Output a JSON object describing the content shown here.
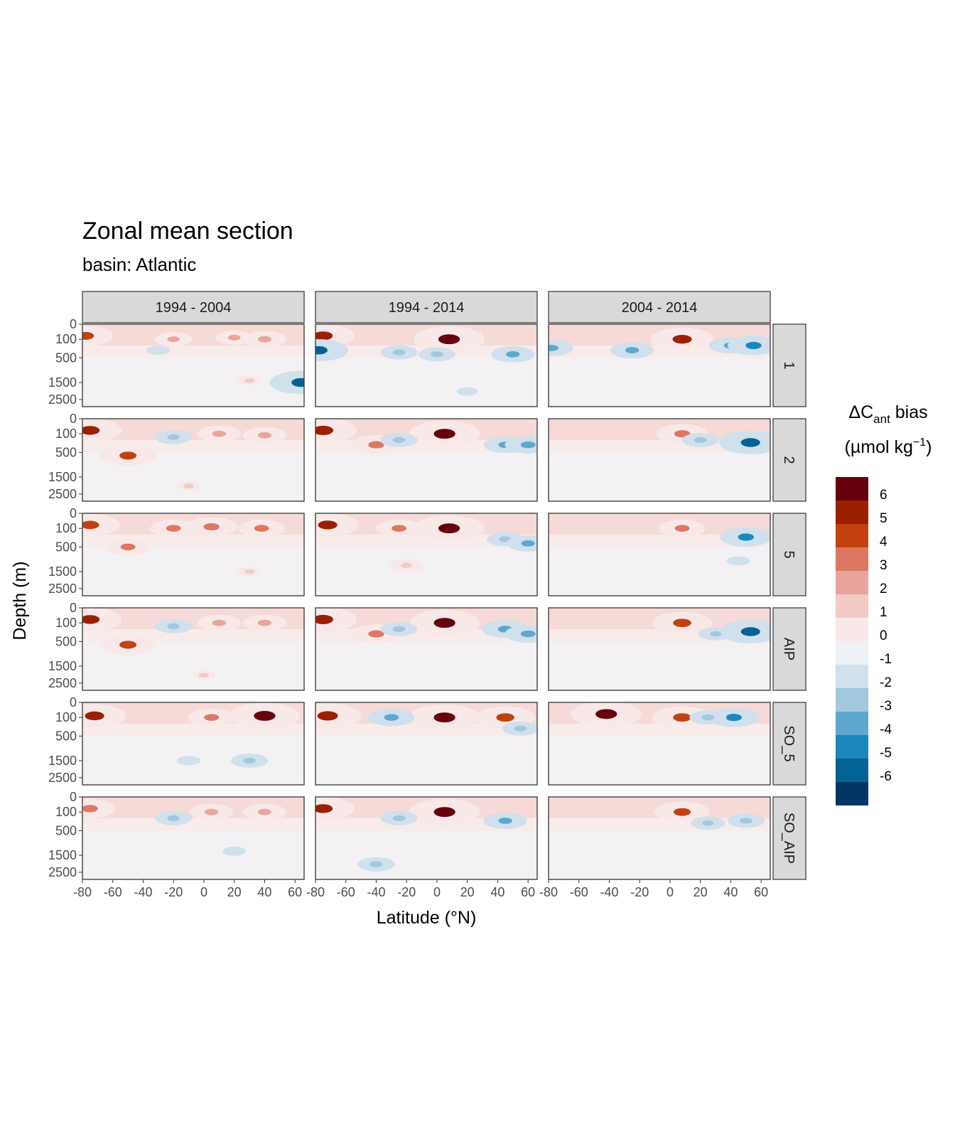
{
  "title": "Zonal mean section",
  "subtitle": "basin: Atlantic",
  "chart_data": {
    "type": "heatmap",
    "subtype": "filled-contour facet grid",
    "xlabel": "Latitude (°N)",
    "ylabel": "Depth (m)",
    "x_ticks": [
      "-80",
      "-60",
      "-40",
      "-20",
      "0",
      "20",
      "40",
      "60"
    ],
    "x_range": [
      -80,
      66
    ],
    "y_ticks": [
      "0",
      "100",
      "500",
      "1500",
      "2500"
    ],
    "y_reversed": true,
    "y_scale": "sqrt",
    "columns": [
      "1994 - 2004",
      "1994 - 2014",
      "2004 - 2014"
    ],
    "rows": [
      "1",
      "2",
      "5",
      "AIP",
      "SO_5",
      "SO_AIP"
    ],
    "legend": {
      "title_main": "ΔC",
      "title_sub": "ant",
      "title_tail": " bias",
      "unit_main": "(µmol kg",
      "unit_sup": "−1",
      "unit_tail": ")",
      "placement": "right",
      "labels": [
        "6",
        "5",
        "4",
        "3",
        "2",
        "1",
        "0",
        "-1",
        "-2",
        "-3",
        "-4",
        "-5",
        "-6"
      ],
      "colors": [
        "#67000D",
        "#9B2000",
        "#C3410F",
        "#DE7862",
        "#E9A59B",
        "#F2CAC6",
        "#F8E9E8",
        "#EEF2F6",
        "#D0E0EC",
        "#A1C8DF",
        "#5EA8D0",
        "#1A88BE",
        "#046294",
        "#033664"
      ]
    },
    "panels": [
      {
        "col": 0,
        "row": 0,
        "features": [
          {
            "lat": -78,
            "depth": 60,
            "value": 4.5
          },
          {
            "lat": -20,
            "depth": 100,
            "value": 2.5
          },
          {
            "lat": 20,
            "depth": 80,
            "value": 2.5
          },
          {
            "lat": 40,
            "depth": 100,
            "value": 3
          },
          {
            "lat": -30,
            "depth": 300,
            "value": -1.5
          },
          {
            "lat": 30,
            "depth": 1400,
            "value": 1.5
          },
          {
            "lat": 64,
            "depth": 1500,
            "value": -5.5
          }
        ]
      },
      {
        "col": 1,
        "row": 0,
        "features": [
          {
            "lat": -75,
            "depth": 60,
            "value": 5.5
          },
          {
            "lat": 8,
            "depth": 100,
            "value": 6.5
          },
          {
            "lat": -25,
            "depth": 350,
            "value": -2.5
          },
          {
            "lat": 0,
            "depth": 400,
            "value": -2.5
          },
          {
            "lat": 50,
            "depth": 400,
            "value": -3
          },
          {
            "lat": -78,
            "depth": 300,
            "value": -5
          },
          {
            "lat": 20,
            "depth": 2000,
            "value": -1
          }
        ]
      },
      {
        "col": 2,
        "row": 0,
        "features": [
          {
            "lat": -25,
            "depth": 300,
            "value": -3
          },
          {
            "lat": 8,
            "depth": 100,
            "value": 5.5
          },
          {
            "lat": 40,
            "depth": 200,
            "value": -3
          },
          {
            "lat": 55,
            "depth": 200,
            "value": -4
          },
          {
            "lat": -78,
            "depth": 250,
            "value": -3
          }
        ]
      },
      {
        "col": 0,
        "row": 1,
        "features": [
          {
            "lat": -75,
            "depth": 60,
            "value": 5.5
          },
          {
            "lat": -50,
            "depth": 600,
            "value": 4.5
          },
          {
            "lat": -20,
            "depth": 150,
            "value": -2.5
          },
          {
            "lat": 10,
            "depth": 100,
            "value": 3
          },
          {
            "lat": 40,
            "depth": 120,
            "value": 3
          },
          {
            "lat": -10,
            "depth": 2000,
            "value": 1.5
          }
        ]
      },
      {
        "col": 1,
        "row": 1,
        "features": [
          {
            "lat": -75,
            "depth": 60,
            "value": 6
          },
          {
            "lat": -40,
            "depth": 300,
            "value": 4
          },
          {
            "lat": 5,
            "depth": 100,
            "value": 6.5
          },
          {
            "lat": -25,
            "depth": 200,
            "value": -2.5
          },
          {
            "lat": 45,
            "depth": 300,
            "value": -3
          },
          {
            "lat": 60,
            "depth": 300,
            "value": -3.5
          }
        ]
      },
      {
        "col": 2,
        "row": 1,
        "features": [
          {
            "lat": 8,
            "depth": 100,
            "value": 4
          },
          {
            "lat": 53,
            "depth": 250,
            "value": -5.5
          },
          {
            "lat": 20,
            "depth": 200,
            "value": -2.5
          }
        ]
      },
      {
        "col": 0,
        "row": 2,
        "features": [
          {
            "lat": -75,
            "depth": 60,
            "value": 5
          },
          {
            "lat": -50,
            "depth": 500,
            "value": 3.5
          },
          {
            "lat": 5,
            "depth": 80,
            "value": 4
          },
          {
            "lat": -20,
            "depth": 100,
            "value": 3.5
          },
          {
            "lat": 38,
            "depth": 100,
            "value": 3.5
          },
          {
            "lat": 30,
            "depth": 1500,
            "value": 1.5
          }
        ]
      },
      {
        "col": 1,
        "row": 2,
        "features": [
          {
            "lat": -72,
            "depth": 60,
            "value": 5.5
          },
          {
            "lat": 8,
            "depth": 100,
            "value": 6.5
          },
          {
            "lat": -25,
            "depth": 100,
            "value": 3.5
          },
          {
            "lat": -20,
            "depth": 1200,
            "value": 2
          },
          {
            "lat": 45,
            "depth": 300,
            "value": -2.5
          },
          {
            "lat": 60,
            "depth": 400,
            "value": -3
          }
        ]
      },
      {
        "col": 2,
        "row": 2,
        "features": [
          {
            "lat": 8,
            "depth": 100,
            "value": 3.5
          },
          {
            "lat": 50,
            "depth": 250,
            "value": -4
          },
          {
            "lat": 45,
            "depth": 1000,
            "value": -1.5
          }
        ]
      },
      {
        "col": 0,
        "row": 3,
        "features": [
          {
            "lat": -75,
            "depth": 60,
            "value": 5.5
          },
          {
            "lat": -50,
            "depth": 600,
            "value": 4.5
          },
          {
            "lat": -20,
            "depth": 150,
            "value": -2.5
          },
          {
            "lat": 10,
            "depth": 100,
            "value": 3
          },
          {
            "lat": 40,
            "depth": 100,
            "value": 3
          },
          {
            "lat": 0,
            "depth": 2000,
            "value": 1.5
          }
        ]
      },
      {
        "col": 1,
        "row": 3,
        "features": [
          {
            "lat": -75,
            "depth": 60,
            "value": 6
          },
          {
            "lat": -40,
            "depth": 300,
            "value": 4
          },
          {
            "lat": 5,
            "depth": 100,
            "value": 6.5
          },
          {
            "lat": -25,
            "depth": 200,
            "value": -2.5
          },
          {
            "lat": 45,
            "depth": 200,
            "value": -3.5
          },
          {
            "lat": 60,
            "depth": 300,
            "value": -3.5
          }
        ]
      },
      {
        "col": 2,
        "row": 3,
        "features": [
          {
            "lat": 8,
            "depth": 100,
            "value": 5
          },
          {
            "lat": 53,
            "depth": 250,
            "value": -5.5
          },
          {
            "lat": 30,
            "depth": 300,
            "value": -2
          }
        ]
      },
      {
        "col": 0,
        "row": 4,
        "features": [
          {
            "lat": -72,
            "depth": 80,
            "value": 5.5
          },
          {
            "lat": 40,
            "depth": 80,
            "value": 6.5
          },
          {
            "lat": 5,
            "depth": 100,
            "value": 3.5
          },
          {
            "lat": -10,
            "depth": 1500,
            "value": -1.5
          },
          {
            "lat": 30,
            "depth": 1500,
            "value": -2.5
          }
        ]
      },
      {
        "col": 1,
        "row": 4,
        "features": [
          {
            "lat": -72,
            "depth": 80,
            "value": 6
          },
          {
            "lat": 5,
            "depth": 100,
            "value": 6.5
          },
          {
            "lat": -30,
            "depth": 100,
            "value": -3.5
          },
          {
            "lat": 45,
            "depth": 100,
            "value": 5
          },
          {
            "lat": 55,
            "depth": 300,
            "value": -2.5
          }
        ]
      },
      {
        "col": 2,
        "row": 4,
        "features": [
          {
            "lat": -42,
            "depth": 60,
            "value": 6.5
          },
          {
            "lat": 8,
            "depth": 100,
            "value": 5
          },
          {
            "lat": 42,
            "depth": 100,
            "value": -4
          },
          {
            "lat": 25,
            "depth": 100,
            "value": -2.5
          }
        ]
      },
      {
        "col": 0,
        "row": 5,
        "features": [
          {
            "lat": -75,
            "depth": 60,
            "value": 4
          },
          {
            "lat": -20,
            "depth": 200,
            "value": -2.5
          },
          {
            "lat": 5,
            "depth": 100,
            "value": 3
          },
          {
            "lat": 40,
            "depth": 100,
            "value": 3
          },
          {
            "lat": 20,
            "depth": 1300,
            "value": -1.5
          }
        ]
      },
      {
        "col": 1,
        "row": 5,
        "features": [
          {
            "lat": -75,
            "depth": 60,
            "value": 5.5
          },
          {
            "lat": 5,
            "depth": 100,
            "value": 6.5
          },
          {
            "lat": -25,
            "depth": 200,
            "value": -2.5
          },
          {
            "lat": 45,
            "depth": 250,
            "value": -3
          },
          {
            "lat": -40,
            "depth": 2000,
            "value": -2.5
          }
        ]
      },
      {
        "col": 2,
        "row": 5,
        "features": [
          {
            "lat": 8,
            "depth": 100,
            "value": 4.5
          },
          {
            "lat": 50,
            "depth": 250,
            "value": -2.5
          },
          {
            "lat": 25,
            "depth": 300,
            "value": -2
          }
        ]
      }
    ]
  }
}
